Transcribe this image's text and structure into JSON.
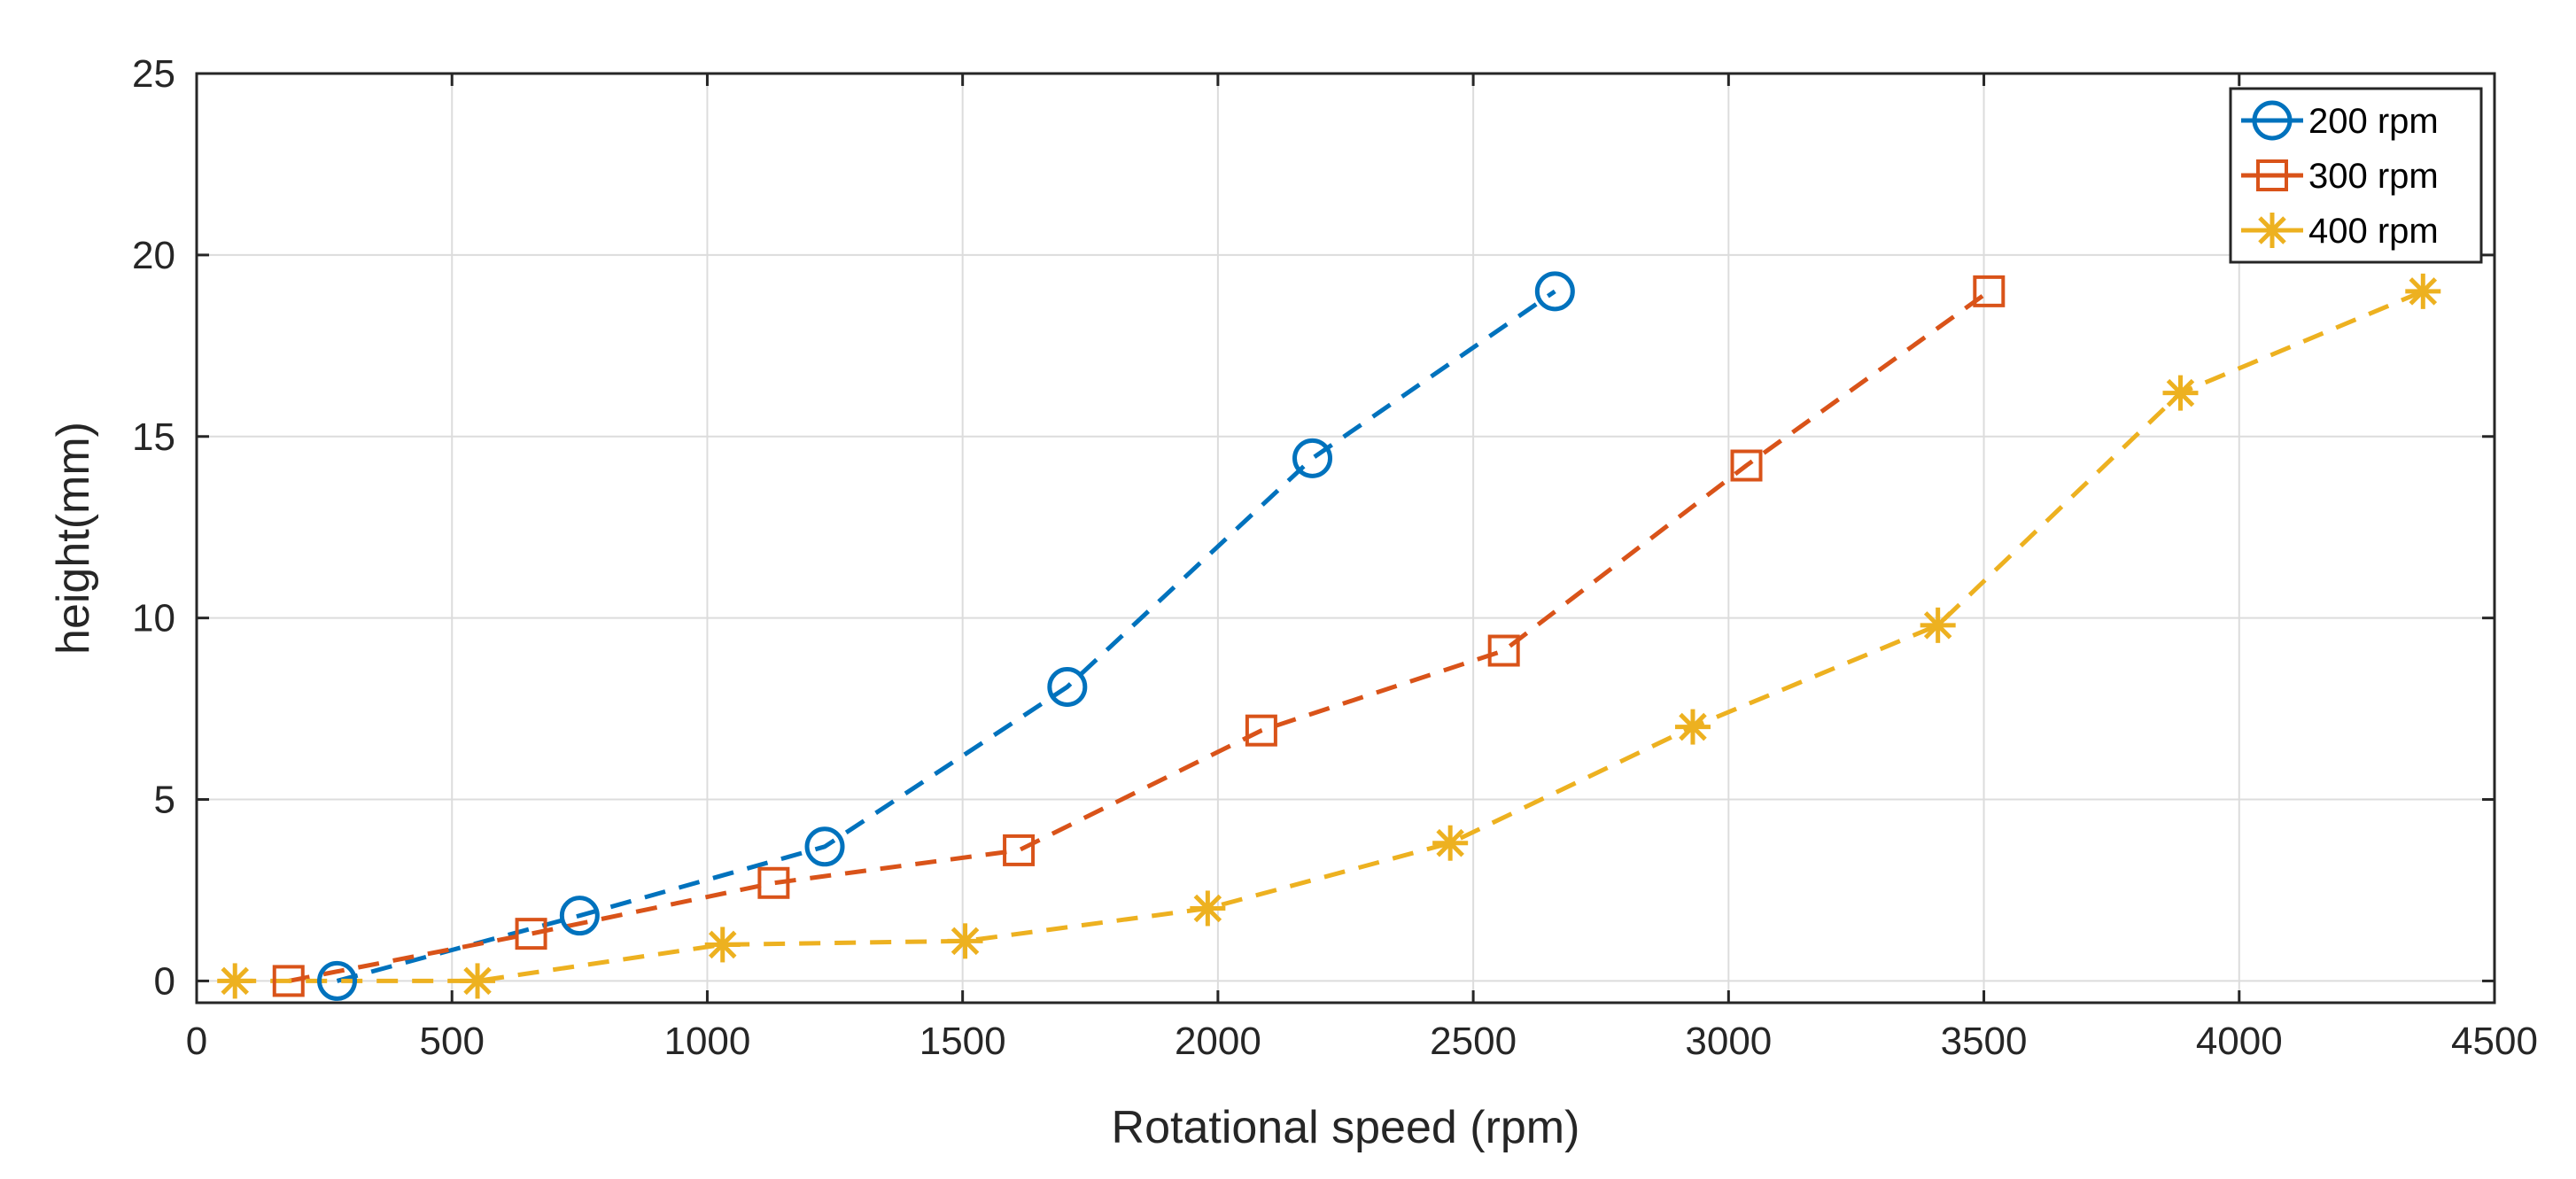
{
  "chart_data": {
    "type": "line",
    "title": "",
    "xlabel": "Rotational speed (rpm)",
    "ylabel": "height(mm)",
    "xlim": [
      0,
      4500
    ],
    "ylim": [
      -0.6,
      25
    ],
    "xticks": [
      0,
      500,
      1000,
      1500,
      2000,
      2500,
      3000,
      3500,
      4000,
      4500
    ],
    "yticks": [
      0,
      5,
      10,
      15,
      20,
      25
    ],
    "grid": true,
    "legend_position": "top-right",
    "series": [
      {
        "name": "200 rpm",
        "color": "#0072BD",
        "marker": "circle",
        "line_style": "dashed",
        "x": [
          275,
          750,
          1230,
          1705,
          2185,
          2660
        ],
        "y": [
          0,
          1.8,
          3.7,
          8.1,
          14.4,
          19
        ]
      },
      {
        "name": "300 rpm",
        "color": "#D95319",
        "marker": "square",
        "line_style": "dashed",
        "x": [
          180,
          655,
          1130,
          1610,
          2085,
          2560,
          3035,
          3510
        ],
        "y": [
          0,
          1.3,
          2.7,
          3.6,
          6.9,
          9.1,
          14.2,
          19
        ]
      },
      {
        "name": "400 rpm",
        "color": "#EDB120",
        "marker": "asterisk",
        "line_style": "dashed",
        "x": [
          75,
          550,
          1030,
          1505,
          1980,
          2455,
          2930,
          3410,
          3885,
          4360
        ],
        "y": [
          0,
          0,
          1.0,
          1.1,
          2.0,
          3.8,
          7.0,
          9.8,
          16.2,
          19
        ]
      }
    ]
  }
}
